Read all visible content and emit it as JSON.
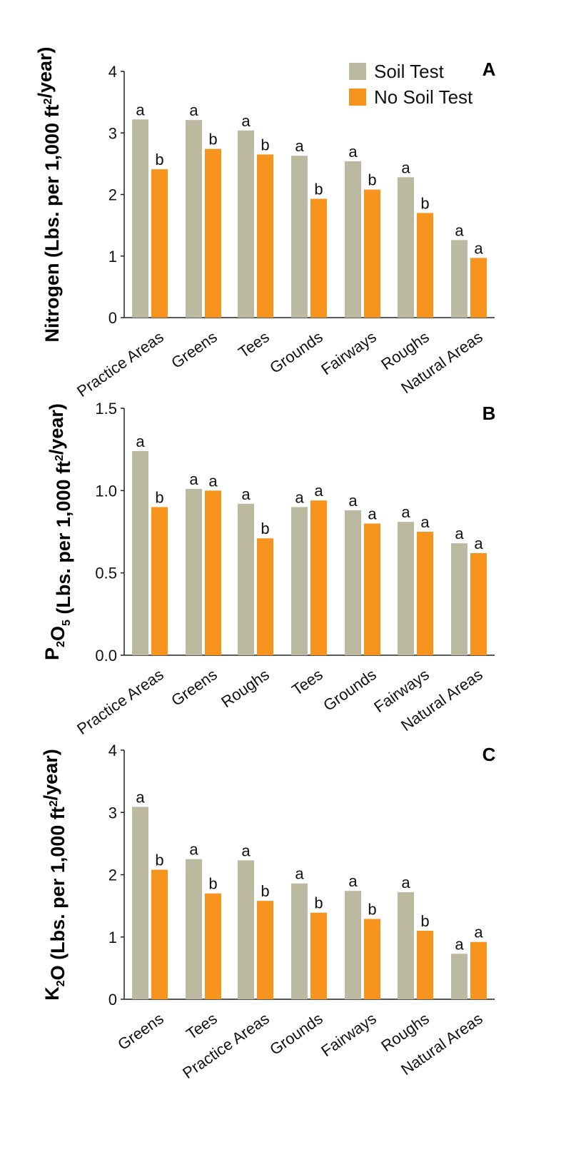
{
  "legend": {
    "soil_test": "Soil Test",
    "no_soil_test": "No Soil Test"
  },
  "colors": {
    "soil_test": "#bbb9a0",
    "no_soil_test": "#f7941d"
  },
  "chart_data": [
    {
      "type": "bar",
      "panel": "A",
      "ylabel": "Nitrogen (Lbs. per 1,000 ft²/year)",
      "ylabel_parts": [
        [
          "Nitrogen (Lbs. per 1,000 ft",
          ""
        ],
        [
          "2",
          "super"
        ],
        [
          "/year)",
          ""
        ]
      ],
      "ylim": [
        0,
        4
      ],
      "yticks": [
        "0",
        "1",
        "2",
        "3",
        "4"
      ],
      "ytick_values": [
        0,
        1,
        2,
        3,
        4
      ],
      "categories": [
        "Practice Areas",
        "Greens",
        "Tees",
        "Grounds",
        "Fairways",
        "Roughs",
        "Natural Areas"
      ],
      "series": [
        {
          "name": "Soil Test",
          "values": [
            3.22,
            3.21,
            3.04,
            2.63,
            2.54,
            2.28,
            1.26
          ],
          "labels": [
            "a",
            "a",
            "a",
            "a",
            "a",
            "a",
            "a"
          ]
        },
        {
          "name": "No Soil Test",
          "values": [
            2.41,
            2.74,
            2.65,
            1.93,
            2.08,
            1.7,
            0.97
          ],
          "labels": [
            "b",
            "b",
            "b",
            "b",
            "b",
            "b",
            "a"
          ]
        }
      ]
    },
    {
      "type": "bar",
      "panel": "B",
      "ylabel": "P₂O₅ (Lbs. per 1,000 ft²/year)",
      "ylabel_parts": [
        [
          "P",
          ""
        ],
        [
          "2",
          "sub"
        ],
        [
          "O",
          ""
        ],
        [
          "5",
          "sub"
        ],
        [
          " (Lbs. per 1,000 ft",
          ""
        ],
        [
          "2",
          "super"
        ],
        [
          "/year)",
          ""
        ]
      ],
      "ylim": [
        0,
        1.5
      ],
      "yticks": [
        "0.0",
        "0.5",
        "1.0",
        "1.5"
      ],
      "ytick_values": [
        0,
        0.5,
        1.0,
        1.5
      ],
      "categories": [
        "Practice Areas",
        "Greens",
        "Roughs",
        "Tees",
        "Grounds",
        "Fairways",
        "Natural Areas"
      ],
      "series": [
        {
          "name": "Soil Test",
          "values": [
            1.24,
            1.01,
            0.92,
            0.9,
            0.88,
            0.81,
            0.68
          ],
          "labels": [
            "a",
            "a",
            "a",
            "a",
            "a",
            "a",
            "a"
          ]
        },
        {
          "name": "No Soil Test",
          "values": [
            0.9,
            1.0,
            0.71,
            0.94,
            0.8,
            0.75,
            0.62
          ],
          "labels": [
            "b",
            "a",
            "b",
            "a",
            "a",
            "a",
            "a"
          ]
        }
      ]
    },
    {
      "type": "bar",
      "panel": "C",
      "ylabel": "K₂O (Lbs. per 1,000 ft²/year)",
      "ylabel_parts": [
        [
          "K",
          ""
        ],
        [
          "2",
          "sub"
        ],
        [
          "O (Lbs. per 1,000 ft",
          ""
        ],
        [
          "2",
          "super"
        ],
        [
          "/year)",
          ""
        ]
      ],
      "ylim": [
        0,
        4
      ],
      "yticks": [
        "0",
        "1",
        "2",
        "3",
        "4"
      ],
      "ytick_values": [
        0,
        1,
        2,
        3,
        4
      ],
      "categories": [
        "Greens",
        "Tees",
        "Practice Areas",
        "Grounds",
        "Fairways",
        "Roughs",
        "Natural Areas"
      ],
      "series": [
        {
          "name": "Soil Test",
          "values": [
            3.09,
            2.25,
            2.23,
            1.86,
            1.74,
            1.72,
            0.73
          ],
          "labels": [
            "a",
            "a",
            "a",
            "a",
            "a",
            "a",
            "a"
          ]
        },
        {
          "name": "No Soil Test",
          "values": [
            2.08,
            1.7,
            1.58,
            1.39,
            1.29,
            1.1,
            0.92
          ],
          "labels": [
            "b",
            "b",
            "b",
            "b",
            "b",
            "b",
            "a"
          ]
        }
      ]
    }
  ]
}
